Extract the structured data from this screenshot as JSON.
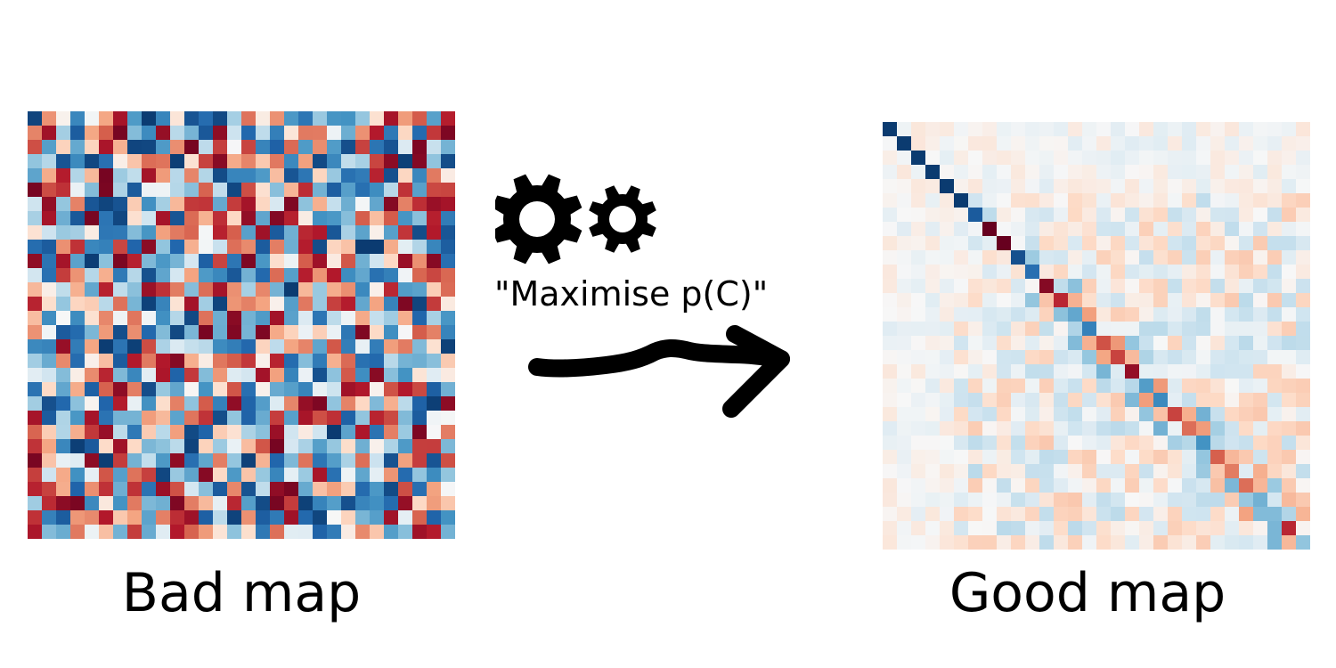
{
  "left_panel": {
    "caption": "Bad map"
  },
  "right_panel": {
    "caption": "Good map"
  },
  "transition": {
    "label": "\"Maximise p(C)\"",
    "icon": "gears-icon",
    "arrow_icon": "arrow-right-icon"
  },
  "colors": {
    "colormap": "RdBu",
    "strong_red": "#67001f",
    "strong_blue": "#053061",
    "neutral": "#f7f7f7"
  }
}
